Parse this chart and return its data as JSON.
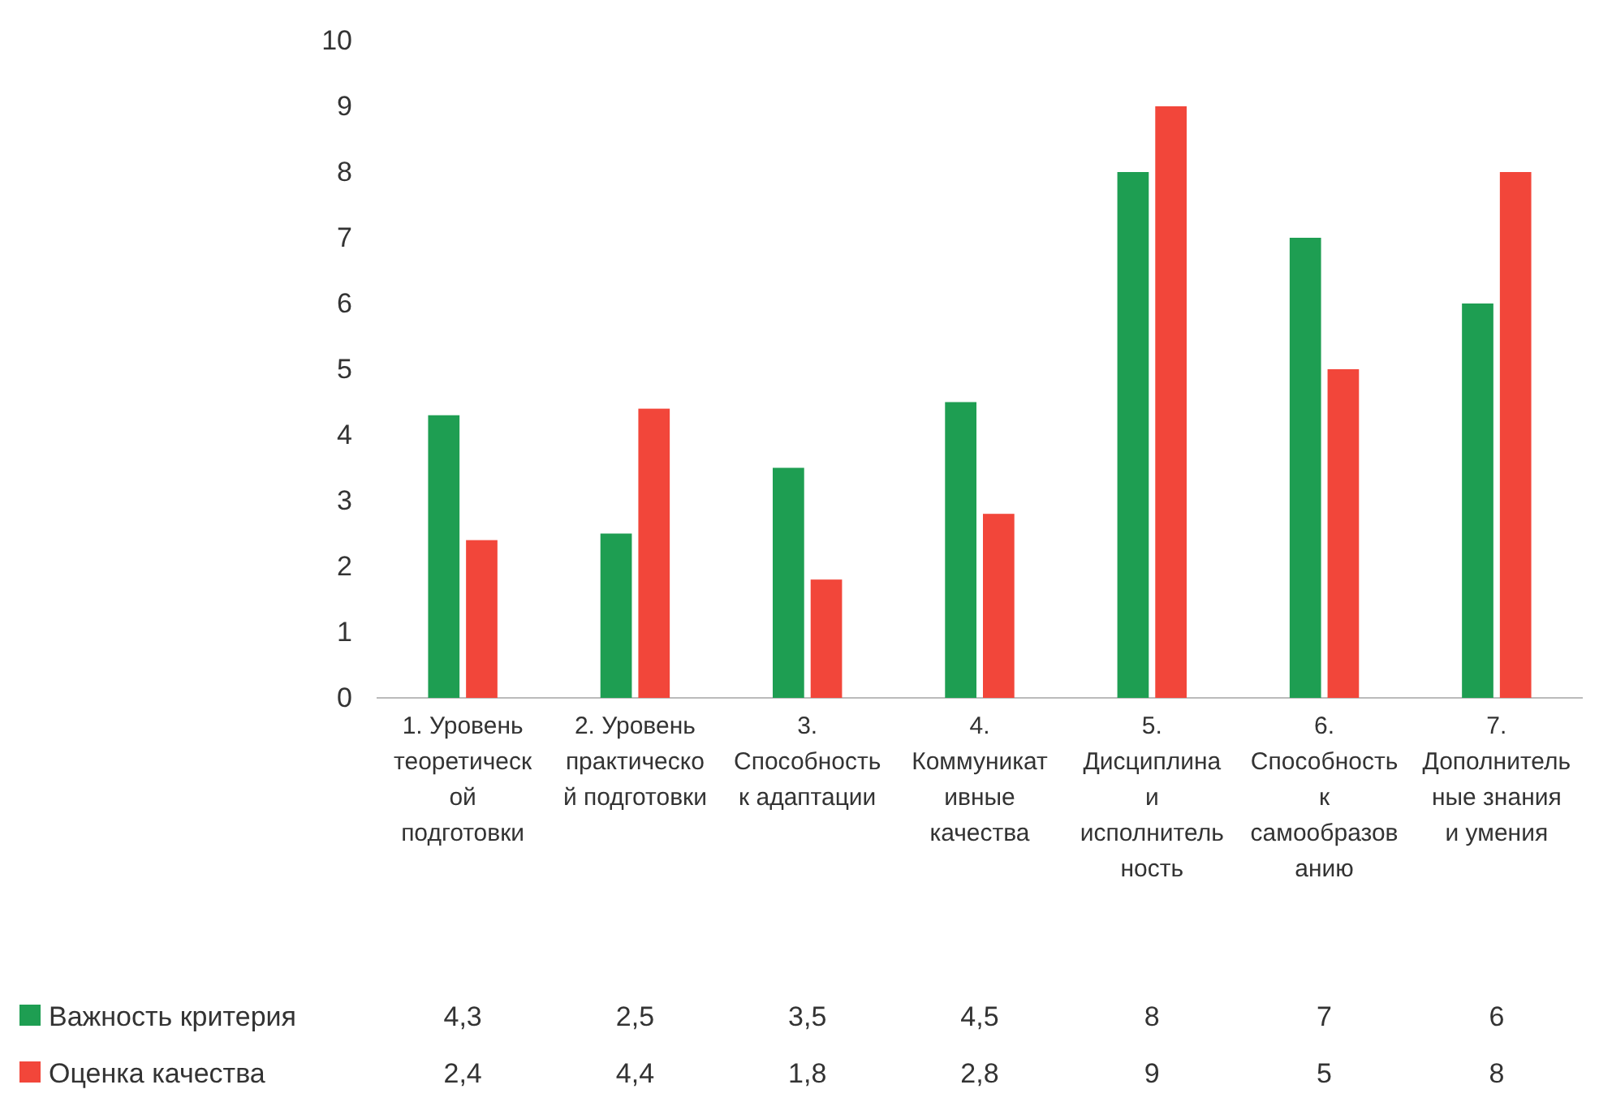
{
  "chart_data": {
    "type": "bar",
    "categories": [
      "1. Уровень теоретической подготовки",
      "2. Уровень практической подготовки",
      "3. Способность к адаптации",
      "4. Коммуникативные качества",
      "5. Дисциплина и исполнительность",
      "6. Способность к самообразованию",
      "7. Дополнительные знания и умения"
    ],
    "series": [
      {
        "name": "Важность критерия",
        "color": "#1e9e52",
        "values": [
          4.3,
          2.5,
          3.5,
          4.5,
          8,
          7,
          6
        ],
        "value_labels": [
          "4,3",
          "2,5",
          "3,5",
          "4,5",
          "8",
          "7",
          "6"
        ]
      },
      {
        "name": "Оценка качества",
        "color": "#f2463a",
        "values": [
          2.4,
          4.4,
          1.8,
          2.8,
          9,
          5,
          8
        ],
        "value_labels": [
          "2,4",
          "4,4",
          "1,8",
          "2,8",
          "9",
          "5",
          "8"
        ]
      }
    ],
    "ylim": [
      0,
      10
    ],
    "yticks": [
      0,
      1,
      2,
      3,
      4,
      5,
      6,
      7,
      8,
      9,
      10
    ],
    "grid": false,
    "legend": "bottom"
  }
}
